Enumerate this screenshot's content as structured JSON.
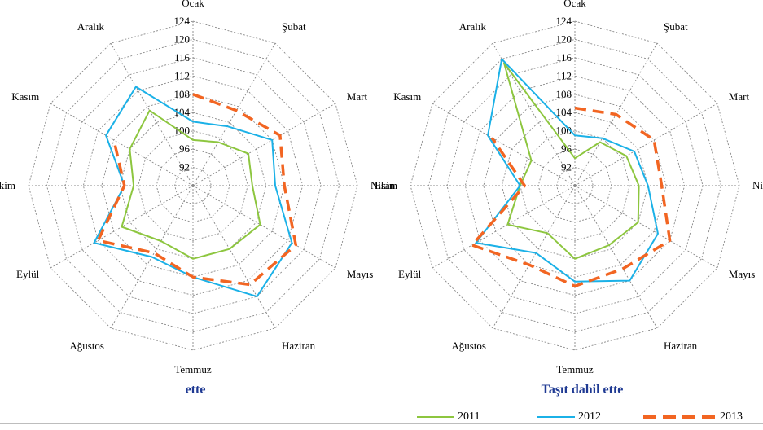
{
  "colors": {
    "s2011": "#8dc63f",
    "s2012": "#1bb1e7",
    "s2013": "#f26522",
    "grid": "#888888",
    "title": "#1f3a93"
  },
  "legend": {
    "items": [
      "2011",
      "2012",
      "2013"
    ]
  },
  "chart_data": [
    {
      "type": "radar",
      "title": "ette",
      "categories": [
        "Ocak",
        "Şubat",
        "Mart",
        "Nisan",
        "Mayıs",
        "Haziran",
        "Temmuz",
        "Ağustos",
        "Eylül",
        "Ekim",
        "Kasım",
        "Aralık"
      ],
      "r_ticks": [
        "92",
        "96",
        "100",
        "104",
        "108",
        "112",
        "116",
        "120",
        "124"
      ],
      "rlim": [
        88,
        124
      ],
      "series": [
        {
          "name": "2011",
          "values": [
            98,
            99,
            102,
            101,
            105,
            104,
            104,
            102,
            106,
            101,
            104,
            107
          ]
        },
        {
          "name": "2012",
          "values": [
            102,
            103,
            108,
            106,
            113,
            116,
            108,
            106,
            113,
            103,
            110,
            113
          ]
        },
        {
          "name": "2013",
          "values": [
            108,
            107,
            110,
            108,
            114,
            113,
            108,
            105,
            112,
            103,
            108,
            null
          ]
        }
      ]
    },
    {
      "type": "radar",
      "title": "Taşıt dahil ette",
      "categories": [
        "Ocak",
        "Şubat",
        "Mart",
        "Nisan",
        "Mayıs",
        "Haziran",
        "Temmuz",
        "Ağustos",
        "Eylül",
        "Ekim",
        "Kasım",
        "Aralık"
      ],
      "r_ticks": [
        "92",
        "96",
        "100",
        "104",
        "108",
        "112",
        "116",
        "120",
        "124"
      ],
      "rlim": [
        88,
        124
      ],
      "series": [
        {
          "name": "2011",
          "values": [
            94,
            99,
            101,
            102,
            104,
            103,
            104,
            100,
            105,
            100,
            99,
            119
          ]
        },
        {
          "name": "2012",
          "values": [
            99,
            100,
            103,
            104,
            109,
            112,
            109,
            105,
            113,
            100,
            110,
            120
          ]
        },
        {
          "name": "2013",
          "values": [
            105,
            106,
            108,
            107,
            112,
            109,
            110,
            108,
            114,
            99,
            109,
            null
          ]
        }
      ]
    }
  ]
}
